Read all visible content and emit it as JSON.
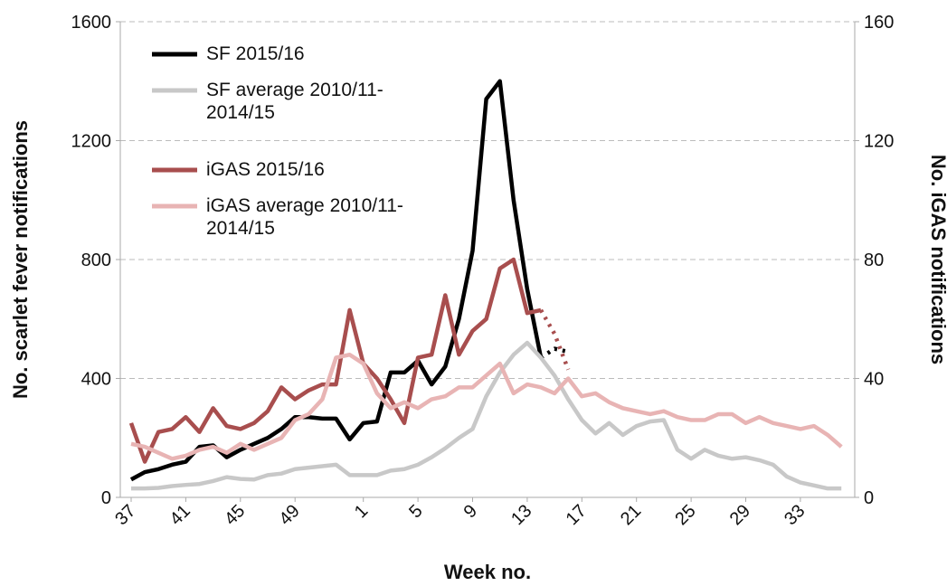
{
  "chart_data": {
    "type": "line",
    "x_label": "Week no.",
    "y_label": "No. scarlet fever notifications",
    "y2_label": "No. iGAS notifications",
    "categories": [
      "37",
      null,
      null,
      null,
      "41",
      null,
      null,
      null,
      "45",
      null,
      null,
      null,
      "49",
      null,
      null,
      null,
      null,
      "1",
      null,
      null,
      null,
      "5",
      null,
      null,
      null,
      "9",
      null,
      null,
      null,
      "13",
      null,
      null,
      null,
      "17",
      null,
      null,
      null,
      "21",
      null,
      null,
      null,
      "25",
      null,
      null,
      null,
      "29",
      null,
      null,
      null,
      "33",
      null,
      null,
      null
    ],
    "ylim": [
      0,
      1600
    ],
    "yticks": [
      0,
      400,
      800,
      1200,
      1600
    ],
    "y2lim": [
      0,
      160
    ],
    "y2ticks": [
      0,
      40,
      80,
      120,
      160
    ],
    "grid": true,
    "provisional_from": 30,
    "series": [
      {
        "name": "SF 2015/16",
        "color": "#000000",
        "values": [
          60,
          85,
          95,
          110,
          120,
          170,
          175,
          135,
          160,
          180,
          200,
          230,
          270,
          270,
          265,
          265,
          195,
          250,
          255,
          420,
          420,
          460,
          380,
          440,
          600,
          830,
          1340,
          1400,
          1000,
          700,
          470,
          500,
          490,
          null,
          null,
          null,
          null,
          null,
          null,
          null,
          null,
          null,
          null,
          null,
          null,
          null,
          null,
          null,
          null,
          null,
          null,
          null,
          null
        ]
      },
      {
        "name": "SF average 2010/11-2014/15",
        "color": "#c8c8c8",
        "values": [
          30,
          30,
          32,
          38,
          42,
          45,
          55,
          68,
          62,
          60,
          75,
          80,
          95,
          100,
          105,
          110,
          75,
          75,
          75,
          90,
          95,
          110,
          135,
          165,
          200,
          230,
          340,
          420,
          480,
          520,
          470,
          410,
          330,
          260,
          215,
          250,
          210,
          240,
          255,
          260,
          160,
          130,
          160,
          140,
          130,
          135,
          125,
          110,
          70,
          50,
          40,
          30,
          30
        ]
      },
      {
        "name": "iGAS 2015/16",
        "color": "#a84e4e",
        "axis": "y2",
        "values": [
          25,
          12,
          22,
          23,
          27,
          22,
          30,
          24,
          23,
          25,
          29,
          37,
          33,
          36,
          38,
          38,
          63,
          45,
          40,
          33,
          25,
          47,
          48,
          68,
          48,
          56,
          60,
          77,
          80,
          62,
          63,
          55,
          43,
          null,
          null,
          null,
          null,
          null,
          null,
          null,
          null,
          null,
          null,
          null,
          null,
          null,
          null,
          null,
          null,
          null,
          null,
          null,
          null
        ]
      },
      {
        "name": "iGAS average 2010/11-2014/15",
        "color": "#e8b4b4",
        "axis": "y2",
        "values": [
          18,
          17,
          15,
          13,
          14,
          16,
          17,
          15,
          18,
          16,
          18,
          20,
          26,
          28,
          33,
          47,
          48,
          45,
          35,
          30,
          32,
          30,
          33,
          34,
          37,
          37,
          41,
          45,
          35,
          38,
          37,
          35,
          40,
          34,
          35,
          32,
          30,
          29,
          28,
          29,
          27,
          26,
          26,
          28,
          28,
          25,
          27,
          25,
          24,
          23,
          24,
          21,
          17
        ]
      }
    ]
  }
}
